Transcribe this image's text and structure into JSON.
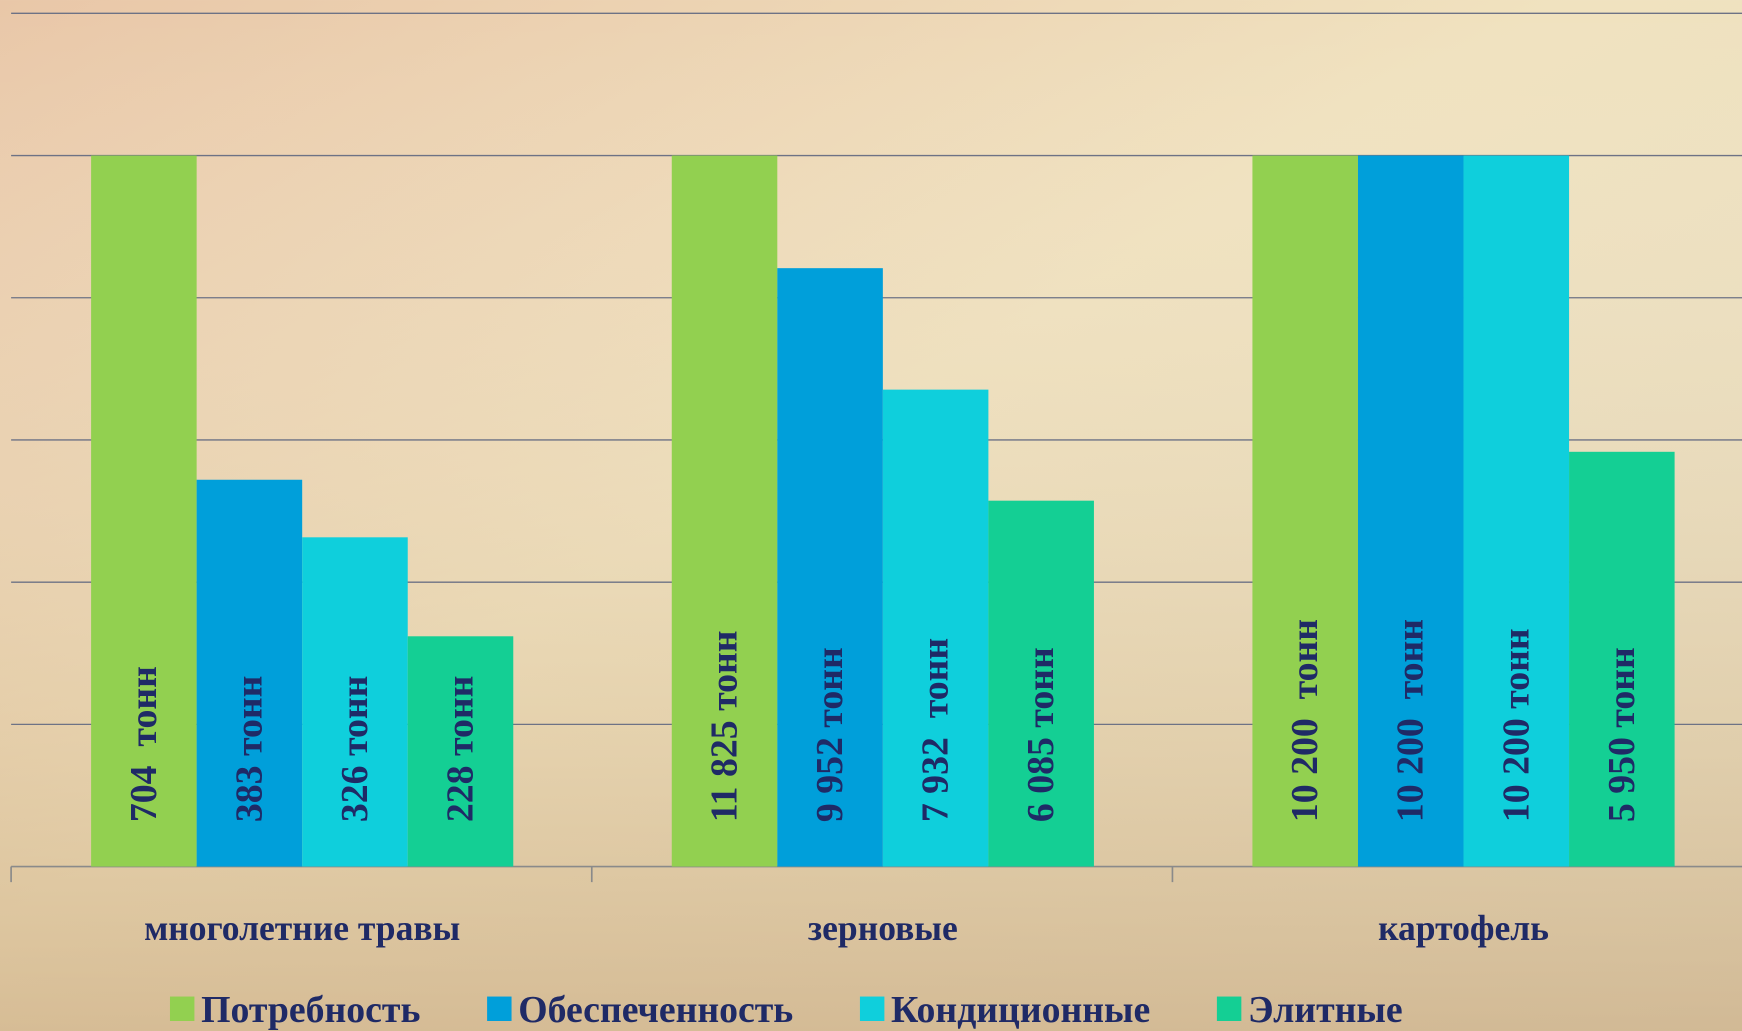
{
  "chart_data": {
    "type": "bar",
    "categories": [
      "многолетние травы",
      "зерновые",
      "картофель"
    ],
    "series": [
      {
        "name": "Потребность",
        "color": "#92d050",
        "values": [
          704,
          11825,
          10200
        ],
        "value_labels": [
          "704  тонн",
          "11 825 тонн",
          "10 200  тонн"
        ]
      },
      {
        "name": "Обеспеченность",
        "color": "#009fda",
        "values": [
          383,
          9952,
          10200
        ],
        "value_labels": [
          "383 тонн",
          "9 952 тонн",
          "10 200  тонн"
        ]
      },
      {
        "name": "Кондиционные",
        "color": "#0fcfdc",
        "values": [
          326,
          7932,
          10200
        ],
        "value_labels": [
          "326 тонн",
          "7 932  тонн",
          "10 200 тонн"
        ]
      },
      {
        "name": "Элитные",
        "color": "#14cf94",
        "values": [
          228,
          6085,
          5950
        ],
        "value_labels": [
          "228 тонн",
          "6 085 тонн",
          "5 950 тонн"
        ]
      }
    ],
    "per_category_scale": true,
    "grid": true,
    "legend": "bottom"
  }
}
